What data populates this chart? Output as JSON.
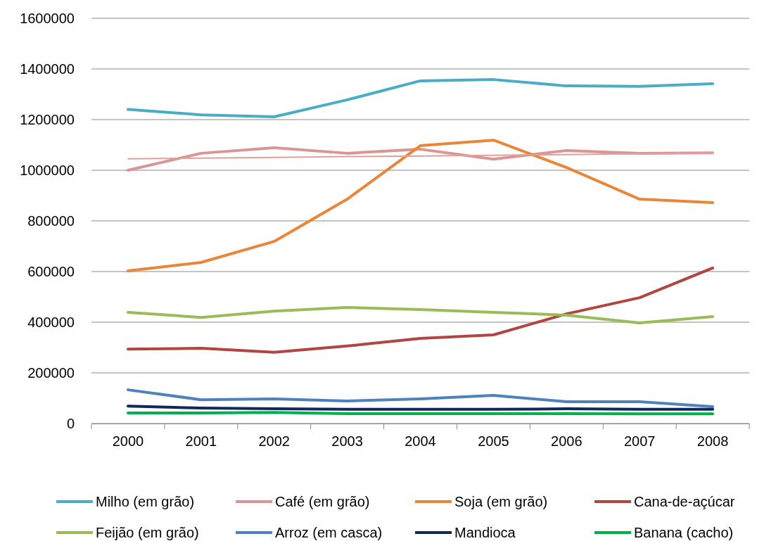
{
  "chart_data": {
    "type": "line",
    "categories": [
      "2000",
      "2001",
      "2002",
      "2003",
      "2004",
      "2005",
      "2006",
      "2007",
      "2008"
    ],
    "ylim": [
      0,
      1600000
    ],
    "yticks": [
      0,
      200000,
      400000,
      600000,
      800000,
      1000000,
      1200000,
      1400000,
      1600000
    ],
    "grid": "y",
    "legend": "bottom",
    "marker": "none",
    "line_style": "solid",
    "series": [
      {
        "name": "Milho (em grão)",
        "color": "#4bacc6",
        "values": [
          1240000,
          1219000,
          1211000,
          1278000,
          1353000,
          1358000,
          1333000,
          1331000,
          1342000
        ]
      },
      {
        "name": "Café (em grão)",
        "color": "#d99694",
        "values": [
          1000000,
          1067000,
          1089000,
          1067000,
          1083000,
          1044000,
          1078000,
          1067000,
          1069000
        ]
      },
      {
        "name": "Soja (em grão)",
        "color": "#e8873a",
        "values": [
          603000,
          636000,
          719000,
          886000,
          1097000,
          1119000,
          1011000,
          886000,
          872000
        ]
      },
      {
        "name": "Cana-de-açúcar",
        "color": "#b04542",
        "values": [
          294000,
          297000,
          281000,
          306000,
          336000,
          350000,
          433000,
          497000,
          614000
        ]
      },
      {
        "name": "Feijão (em grão)",
        "color": "#9bbb59",
        "values": [
          439000,
          419000,
          444000,
          458000,
          450000,
          439000,
          428000,
          397000,
          422000
        ]
      },
      {
        "name": "Arroz (em casca)",
        "color": "#4f81bd",
        "values": [
          133000,
          94000,
          97000,
          89000,
          97000,
          111000,
          86000,
          86000,
          67000
        ]
      },
      {
        "name": "Mandioca",
        "color": "#10295a",
        "values": [
          69000,
          61000,
          58000,
          56000,
          56000,
          56000,
          58000,
          56000,
          56000
        ]
      },
      {
        "name": "Banana (cacho)",
        "color": "#00b050",
        "values": [
          42000,
          42000,
          44000,
          39000,
          39000,
          39000,
          39000,
          38000,
          38000
        ]
      },
      {
        "type": "line",
        "color": "#e0a09c",
        "values": [
          1045000,
          1048000,
          1051000,
          1054000,
          1056000,
          1059000,
          1062000,
          1065000,
          1068000
        ]
      }
    ]
  }
}
